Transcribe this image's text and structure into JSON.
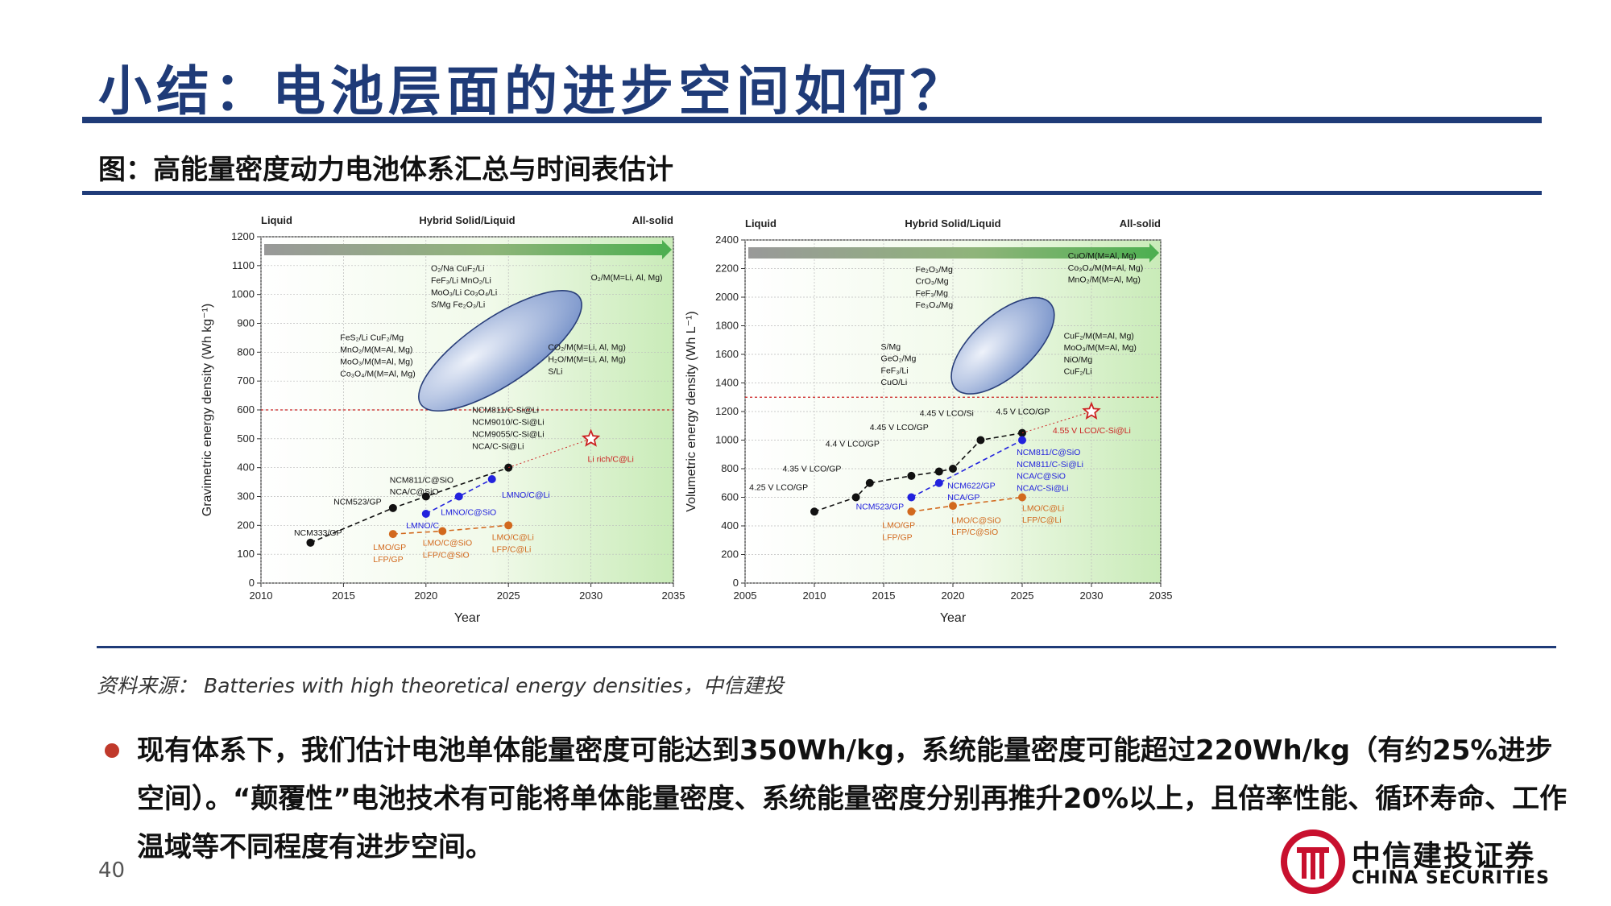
{
  "slide": {
    "title": "小结：电池层面的进步空间如何？",
    "subtitle": "图：高能量密度动力电池体系汇总与时间表估计",
    "source": "资料来源： Batteries with high theoretical energy densities，中信建投",
    "bullet": "现有体系下，我们估计电池单体能量密度可能达到350Wh/kg，系统能量密度可能超过220Wh/kg（有约25%进步空间）。“颠覆性”电池技术有可能将单体能量密度、系统能量密度分别再推升20%以上，且倍率性能、循环寿命、工作温域等不同程度有进步空间。",
    "page_number": "40",
    "logo_cn": "中信建投证券",
    "logo_en": "CHINA SECURITIES",
    "colors": {
      "brand_blue": "#1f3b78",
      "bullet_red": "#c0392b",
      "logo_red": "#c8102e"
    }
  },
  "chart_data": [
    {
      "type": "scatter",
      "ylabel": "Gravimetric energy density (Wh kg⁻¹)",
      "xlabel": "Year",
      "xlim": [
        2010,
        2035
      ],
      "ylim": [
        0,
        1200
      ],
      "xticks": [
        2010,
        2015,
        2020,
        2025,
        2030,
        2035
      ],
      "yticks": [
        0,
        100,
        200,
        300,
        400,
        500,
        600,
        700,
        800,
        900,
        1000,
        1100,
        1200
      ],
      "phase_labels": [
        "Liquid",
        "Hybrid Solid/Liquid",
        "All-solid"
      ],
      "threshold_line": 600,
      "series": [
        {
          "color": "#111111",
          "points": [
            [
              2013,
              140
            ],
            [
              2018,
              260
            ],
            [
              2020,
              300
            ],
            [
              2025,
              400
            ]
          ]
        },
        {
          "color": "#2222dd",
          "points": [
            [
              2020,
              240
            ],
            [
              2022,
              300
            ],
            [
              2024,
              360
            ]
          ]
        },
        {
          "color": "#d2691e",
          "points": [
            [
              2018,
              170
            ],
            [
              2021,
              180
            ],
            [
              2025,
              200
            ]
          ]
        }
      ],
      "star": {
        "x": 2030,
        "y": 500,
        "label": "Li rich/C@Li"
      },
      "ellipse": {
        "cx": 2024.5,
        "cy": 805,
        "rx_years": 5.8,
        "ry": 115,
        "angle": -34
      },
      "annotations": [
        {
          "x": 2012,
          "y": 165,
          "text": "NCM333/GP",
          "color": "#111111"
        },
        {
          "x": 2014.4,
          "y": 272,
          "text": "NCM523/GP",
          "color": "#111111"
        },
        {
          "x": 2017.8,
          "y": 347,
          "text": "NCM811/C@SiO",
          "color": "#111111"
        },
        {
          "x": 2017.8,
          "y": 307,
          "text": "NCA/C@SiO",
          "color": "#111111"
        },
        {
          "x": 2022.8,
          "y": 590,
          "text": "NCM811/C-Si@Li",
          "color": "#111111"
        },
        {
          "x": 2022.8,
          "y": 548,
          "text": "NCM9010/C-Si@Li",
          "color": "#111111"
        },
        {
          "x": 2022.8,
          "y": 506,
          "text": "NCM9055/C-Si@Li",
          "color": "#111111"
        },
        {
          "x": 2022.8,
          "y": 464,
          "text": "NCA/C-Si@Li",
          "color": "#111111"
        },
        {
          "x": 2018.8,
          "y": 190,
          "text": "LMNO/C",
          "color": "#2222dd"
        },
        {
          "x": 2020.9,
          "y": 236,
          "text": "LMNO/C@SiO",
          "color": "#2222dd"
        },
        {
          "x": 2024.6,
          "y": 296,
          "text": "LMNO/C@Li",
          "color": "#2222dd"
        },
        {
          "x": 2016.8,
          "y": 115,
          "text": "LMO/GP",
          "color": "#d2691e"
        },
        {
          "x": 2016.8,
          "y": 73,
          "text": "LFP/GP",
          "color": "#d2691e"
        },
        {
          "x": 2019.8,
          "y": 130,
          "text": "LMO/C@SiO",
          "color": "#d2691e"
        },
        {
          "x": 2019.8,
          "y": 88,
          "text": "LFP/C@SiO",
          "color": "#d2691e"
        },
        {
          "x": 2024.0,
          "y": 150,
          "text": "LMO/C@Li",
          "color": "#d2691e"
        },
        {
          "x": 2024.0,
          "y": 108,
          "text": "LFP/C@Li",
          "color": "#d2691e"
        },
        {
          "x": 2029.8,
          "y": 420,
          "text": "Li rich/C@Li",
          "color": "#cc2222"
        },
        {
          "x": 2014.8,
          "y": 842,
          "text": "FeS₂/Li   CuF₂/Mg",
          "color": "#111111"
        },
        {
          "x": 2014.8,
          "y": 800,
          "text": "MnO₂/M(M=Al, Mg)",
          "color": "#111111"
        },
        {
          "x": 2014.8,
          "y": 758,
          "text": "MoO₃/M(M=Al, Mg)",
          "color": "#111111"
        },
        {
          "x": 2014.8,
          "y": 716,
          "text": "Co₃O₄/M(M=Al, Mg)",
          "color": "#111111"
        },
        {
          "x": 2020.3,
          "y": 1082,
          "text": "O₂/Na   CuF₂/Li",
          "color": "#111111"
        },
        {
          "x": 2020.3,
          "y": 1040,
          "text": "FeF₃/Li   MnO₂/Li",
          "color": "#111111"
        },
        {
          "x": 2020.3,
          "y": 998,
          "text": "MoO₃/Li   Co₃O₄/Li",
          "color": "#111111"
        },
        {
          "x": 2020.3,
          "y": 956,
          "text": "S/Mg   Fe₂O₃/Li",
          "color": "#111111"
        },
        {
          "x": 2030.0,
          "y": 1050,
          "text": "O₂/M(M=Li, Al, Mg)",
          "color": "#111111"
        },
        {
          "x": 2027.4,
          "y": 808,
          "text": "CO₂/M(M=Li, Al, Mg)",
          "color": "#111111"
        },
        {
          "x": 2027.4,
          "y": 766,
          "text": "H₂O/M(M=Li, Al, Mg)",
          "color": "#111111"
        },
        {
          "x": 2027.4,
          "y": 724,
          "text": "S/Li",
          "color": "#111111"
        }
      ]
    },
    {
      "type": "scatter",
      "ylabel": "Volumetric energy density (Wh L⁻¹)",
      "xlabel": "Year",
      "xlim": [
        2005,
        2035
      ],
      "ylim": [
        0,
        2400
      ],
      "xticks": [
        2005,
        2010,
        2015,
        2020,
        2025,
        2030,
        2035
      ],
      "yticks": [
        0,
        200,
        400,
        600,
        800,
        1000,
        1200,
        1400,
        1600,
        1800,
        2000,
        2200,
        2400
      ],
      "phase_labels": [
        "Liquid",
        "Hybrid Solid/Liquid",
        "All-solid"
      ],
      "threshold_line": 1300,
      "series": [
        {
          "color": "#111111",
          "points": [
            [
              2010,
              500
            ],
            [
              2013,
              600
            ],
            [
              2014,
              700
            ],
            [
              2017,
              750
            ],
            [
              2019,
              780
            ],
            [
              2020,
              800
            ],
            [
              2022,
              1000
            ],
            [
              2025,
              1050
            ]
          ]
        },
        {
          "color": "#2222dd",
          "points": [
            [
              2017,
              600
            ],
            [
              2019,
              700
            ],
            [
              2025,
              1000
            ]
          ]
        },
        {
          "color": "#d2691e",
          "points": [
            [
              2017,
              500
            ],
            [
              2020,
              540
            ],
            [
              2025,
              600
            ]
          ]
        }
      ],
      "star": {
        "x": 2030,
        "y": 1200,
        "label": "4.55 V LCO/C-Si@Li"
      },
      "ellipse": {
        "cx": 2023.6,
        "cy": 1660,
        "rx_years": 4.6,
        "ry": 210,
        "angle": -42
      },
      "annotations": [
        {
          "x": 2005.3,
          "y": 650,
          "text": "4.25 V LCO/GP",
          "color": "#111111"
        },
        {
          "x": 2007.7,
          "y": 780,
          "text": "4.35 V LCO/GP",
          "color": "#111111"
        },
        {
          "x": 2010.8,
          "y": 955,
          "text": "4.4 V LCO/GP",
          "color": "#111111"
        },
        {
          "x": 2014.0,
          "y": 1070,
          "text": "4.45 V LCO/GP",
          "color": "#111111"
        },
        {
          "x": 2017.6,
          "y": 1170,
          "text": "4.45 V LCO/Si",
          "color": "#111111"
        },
        {
          "x": 2023.1,
          "y": 1180,
          "text": "4.5 V LCO/GP",
          "color": "#111111"
        },
        {
          "x": 2027.2,
          "y": 1048,
          "text": "4.55 V LCO/C-Si@Li",
          "color": "#cc2222"
        },
        {
          "x": 2024.6,
          "y": 895,
          "text": "NCM811/C@SiO",
          "color": "#2222dd"
        },
        {
          "x": 2024.6,
          "y": 812,
          "text": "NCM811/C-Si@Li",
          "color": "#2222dd"
        },
        {
          "x": 2024.6,
          "y": 729,
          "text": "NCA/C@SiO",
          "color": "#2222dd"
        },
        {
          "x": 2024.6,
          "y": 646,
          "text": "NCA/C-Si@Li",
          "color": "#2222dd"
        },
        {
          "x": 2019.6,
          "y": 662,
          "text": "NCM622/GP",
          "color": "#2222dd"
        },
        {
          "x": 2019.6,
          "y": 579,
          "text": "NCA/GP",
          "color": "#2222dd"
        },
        {
          "x": 2013.0,
          "y": 515,
          "text": "NCM523/GP",
          "color": "#2222dd"
        },
        {
          "x": 2014.9,
          "y": 385,
          "text": "LMO/GP",
          "color": "#d2691e"
        },
        {
          "x": 2014.9,
          "y": 302,
          "text": "LFP/GP",
          "color": "#d2691e"
        },
        {
          "x": 2019.9,
          "y": 420,
          "text": "LMO/C@SiO",
          "color": "#d2691e"
        },
        {
          "x": 2019.9,
          "y": 337,
          "text": "LFP/C@SiO",
          "color": "#d2691e"
        },
        {
          "x": 2025.0,
          "y": 505,
          "text": "LMO/C@Li",
          "color": "#d2691e"
        },
        {
          "x": 2025.0,
          "y": 422,
          "text": "LFP/C@Li",
          "color": "#d2691e"
        },
        {
          "x": 2017.3,
          "y": 2175,
          "text": "Fe₂O₃/Mg",
          "color": "#111111"
        },
        {
          "x": 2017.3,
          "y": 2092,
          "text": "CrO₃/Mg",
          "color": "#111111"
        },
        {
          "x": 2017.3,
          "y": 2009,
          "text": "FeF₃/Mg",
          "color": "#111111"
        },
        {
          "x": 2017.3,
          "y": 1926,
          "text": "Fe₃O₄/Mg",
          "color": "#111111"
        },
        {
          "x": 2014.8,
          "y": 1635,
          "text": "S/Mg",
          "color": "#111111"
        },
        {
          "x": 2014.8,
          "y": 1552,
          "text": "GeO₂/Mg",
          "color": "#111111"
        },
        {
          "x": 2014.8,
          "y": 1469,
          "text": "FeF₃/Li",
          "color": "#111111"
        },
        {
          "x": 2014.8,
          "y": 1386,
          "text": "CuO/Li",
          "color": "#111111"
        },
        {
          "x": 2028.3,
          "y": 2270,
          "text": "CuO/M(M=Al, Mg)",
          "color": "#111111"
        },
        {
          "x": 2028.3,
          "y": 2187,
          "text": "Co₃O₄/M(M=Al, Mg)",
          "color": "#111111"
        },
        {
          "x": 2028.3,
          "y": 2104,
          "text": "MnO₂/M(M=Al, Mg)",
          "color": "#111111"
        },
        {
          "x": 2028.0,
          "y": 1710,
          "text": "CuF₂/M(M=Al, Mg)",
          "color": "#111111"
        },
        {
          "x": 2028.0,
          "y": 1627,
          "text": "MoO₃/M(M=Al, Mg)",
          "color": "#111111"
        },
        {
          "x": 2028.0,
          "y": 1544,
          "text": "NiO/Mg",
          "color": "#111111"
        },
        {
          "x": 2028.0,
          "y": 1461,
          "text": "CuF₂/Li",
          "color": "#111111"
        }
      ]
    }
  ]
}
